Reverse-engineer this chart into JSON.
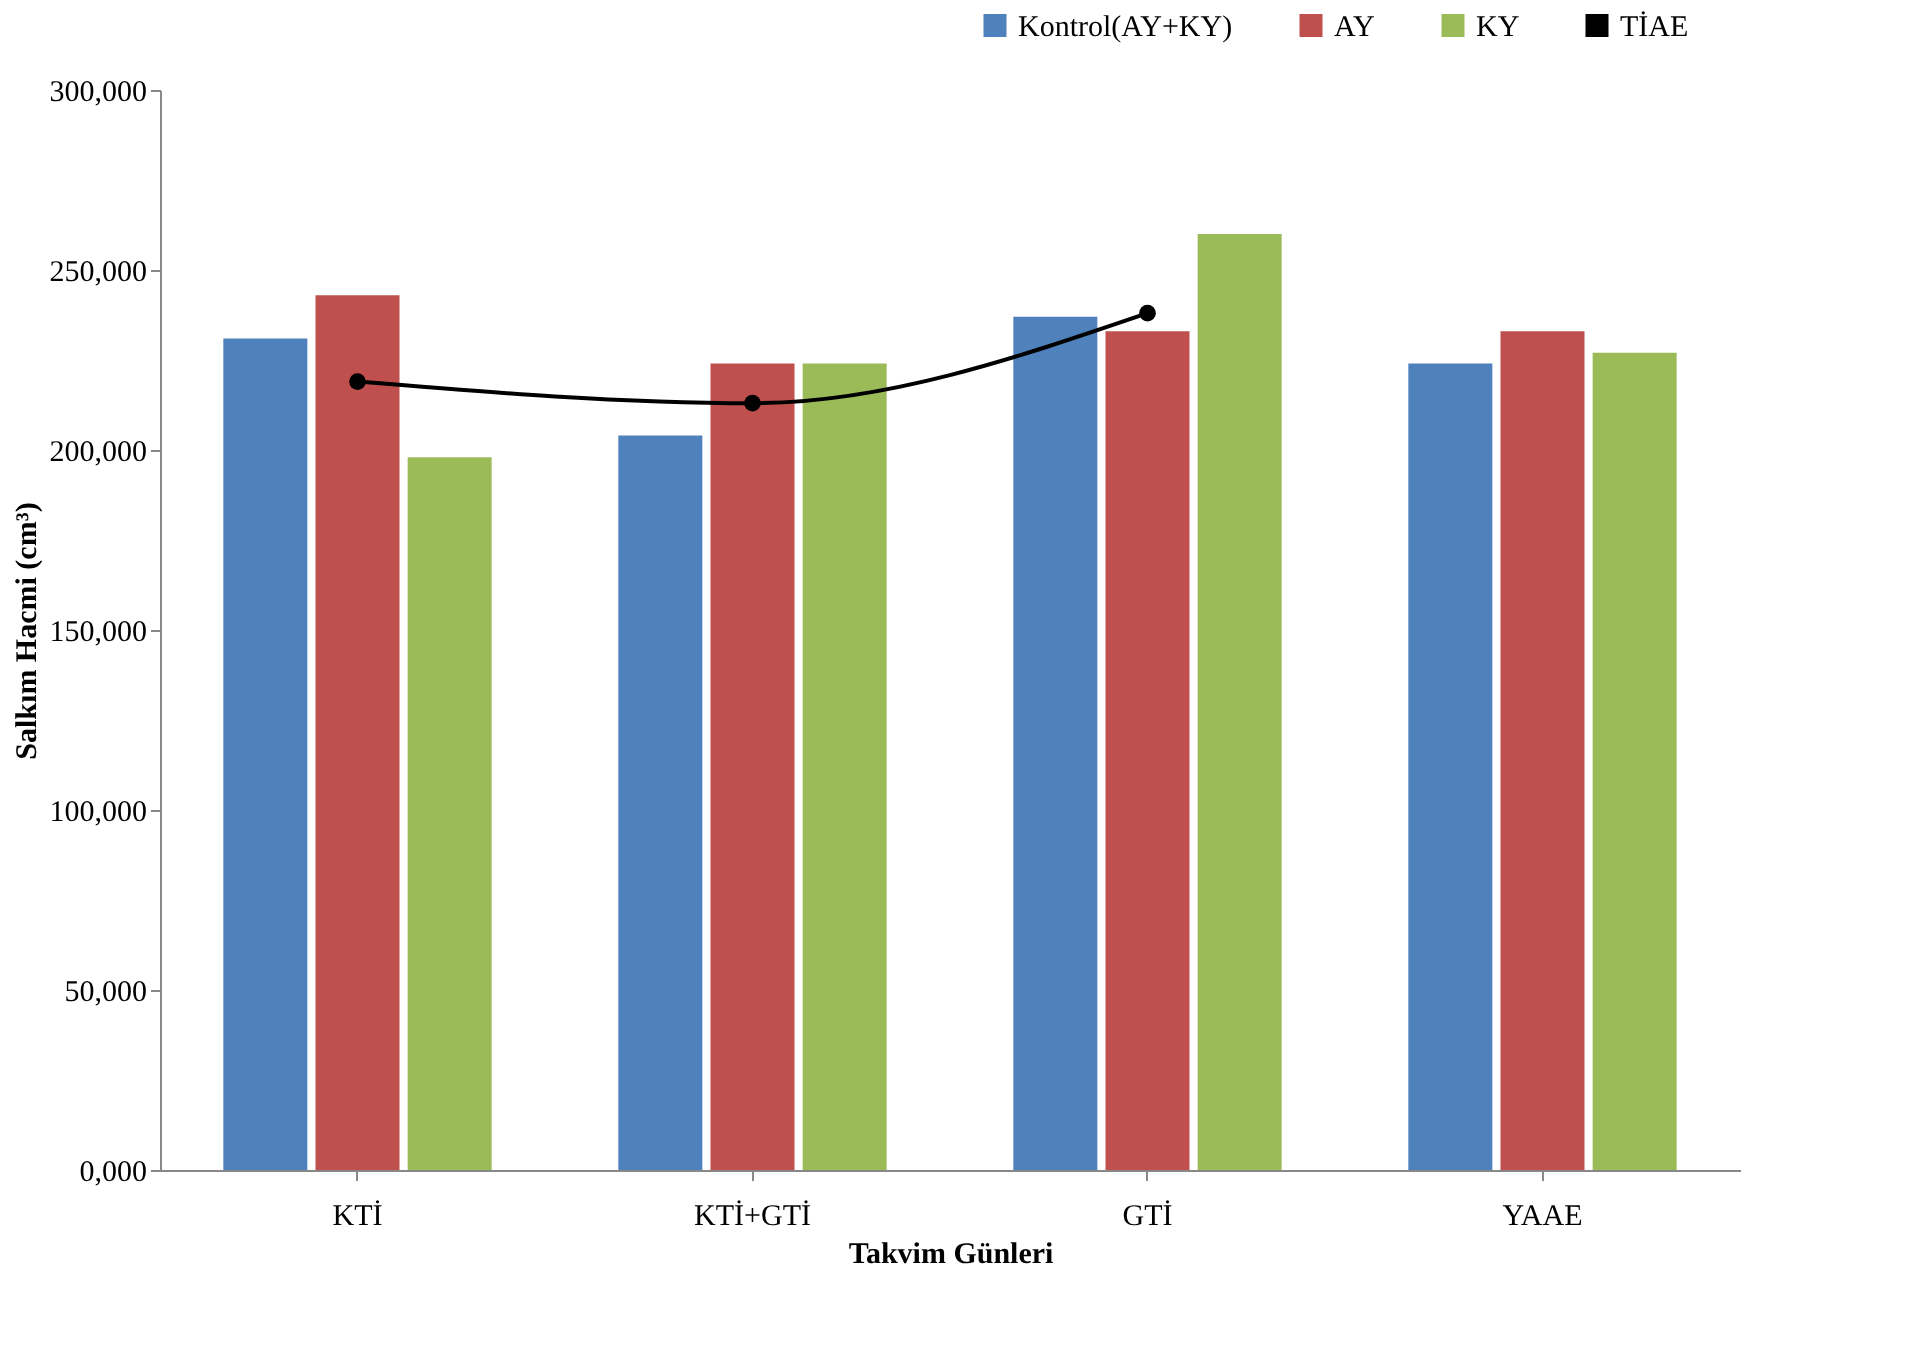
{
  "chart_data": {
    "type": "bar",
    "xlabel": "Takvim Günleri",
    "ylabel": "Salkım Hacmi  (cm³)",
    "categories": [
      "KTİ",
      "KTİ+GTİ",
      "GTİ",
      "YAAE"
    ],
    "series": [
      {
        "name": "Kontrol(AY+KY)",
        "color": "#4f81bd",
        "values": [
          231000,
          204000,
          237000,
          224000
        ]
      },
      {
        "name": "AY",
        "color": "#c0504d",
        "values": [
          243000,
          224000,
          233000,
          233000
        ]
      },
      {
        "name": "KY",
        "color": "#9bbb59",
        "values": [
          198000,
          224000,
          260000,
          227000
        ]
      },
      {
        "name": "TİAE",
        "type": "line",
        "color": "#000000",
        "values": [
          219000,
          213000,
          238000,
          null
        ],
        "marker": "circle"
      }
    ],
    "ylim": [
      0,
      300000
    ],
    "yticks": [
      {
        "value": 0,
        "label": "0,000"
      },
      {
        "value": 50000,
        "label": "50,000"
      },
      {
        "value": 100000,
        "label": "100,000"
      },
      {
        "value": 150000,
        "label": "150,000"
      },
      {
        "value": 200000,
        "label": "200,000"
      },
      {
        "value": 250000,
        "label": "250,000"
      },
      {
        "value": 300000,
        "label": "300,000"
      }
    ],
    "grid": false,
    "legend": "top right"
  }
}
